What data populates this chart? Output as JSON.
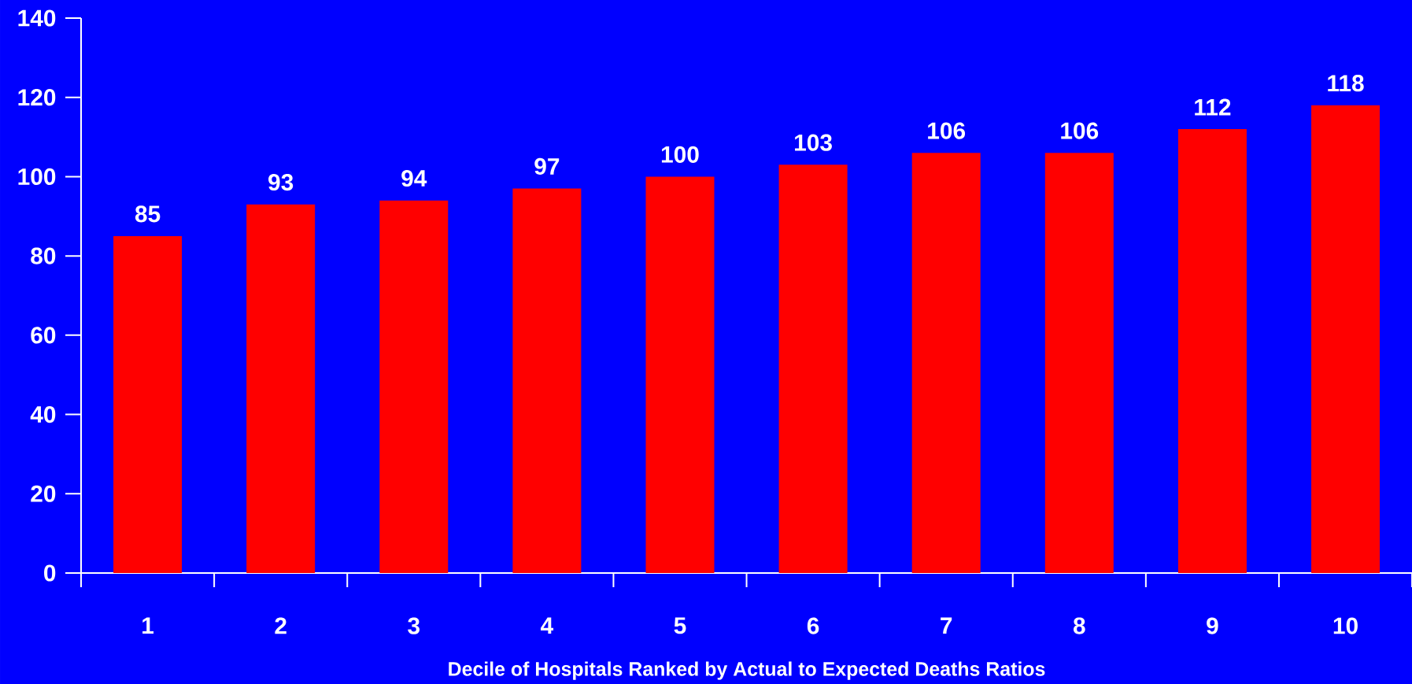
{
  "chart_data": {
    "type": "bar",
    "xlabel": "Decile of Hospitals Ranked by Actual to Expected Deaths Ratios",
    "categories": [
      "1",
      "2",
      "3",
      "4",
      "5",
      "6",
      "7",
      "8",
      "9",
      "10"
    ],
    "values": [
      85,
      93,
      94,
      97,
      100,
      103,
      106,
      106,
      112,
      118
    ],
    "color": "#ff0000",
    "ylim": [
      0,
      140
    ],
    "yticks": [
      0,
      20,
      40,
      60,
      80,
      100,
      120,
      140
    ],
    "data_labels": true,
    "grid": false
  }
}
